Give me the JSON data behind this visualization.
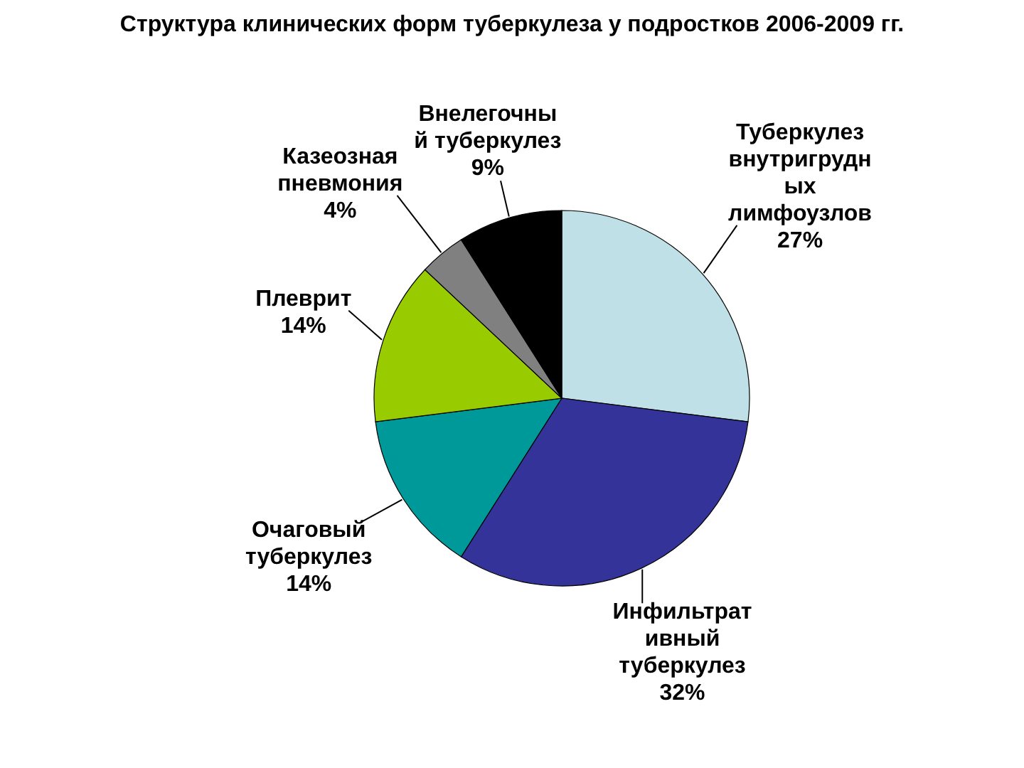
{
  "chart_data": {
    "type": "pie",
    "title": "Структура клинических форм туберкулеза у подростков 2006-2009 гг.",
    "categories": [
      "Туберкулез\nвнутригрудн\nых\nлимфоузлов",
      "Инфильтрат\nивный\nтуберкулез",
      "Очаговый\nтуберкулез",
      "Плеврит",
      "Казеозная\nпневмония",
      "Внелегочны\nй туберкулез"
    ],
    "values": [
      27,
      32,
      14,
      14,
      4,
      9
    ],
    "value_labels": [
      "27%",
      "32%",
      "14%",
      "14%",
      "4%",
      "9%"
    ],
    "colors": [
      "#bfe0e6",
      "#333399",
      "#009999",
      "#99cc00",
      "#808080",
      "#000000"
    ]
  }
}
